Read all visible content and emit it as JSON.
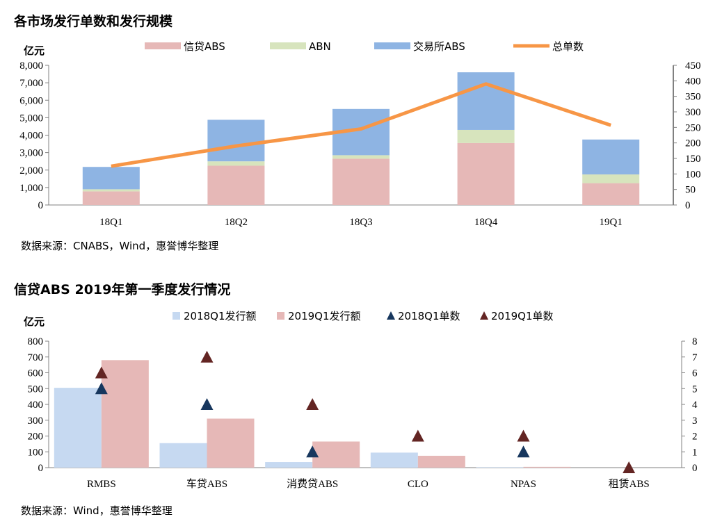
{
  "chart_data": [
    {
      "type": "bar",
      "stacked": true,
      "title": "各市场发行单数和发行规模",
      "ylabel": "亿元",
      "categories": [
        "18Q1",
        "18Q2",
        "18Q3",
        "18Q4",
        "19Q1"
      ],
      "ylim": [
        0,
        8000
      ],
      "yticks": [
        "0",
        "1,000",
        "2,000",
        "3,000",
        "4,000",
        "5,000",
        "6,000",
        "7,000",
        "8,000"
      ],
      "y2lim": [
        0,
        450
      ],
      "y2ticks": [
        "0",
        "50",
        "100",
        "150",
        "200",
        "250",
        "300",
        "350",
        "400",
        "450"
      ],
      "series": [
        {
          "name": "信贷ABS",
          "type": "bar",
          "axis": "left",
          "color": "#e6b8b7",
          "values": [
            780,
            2250,
            2650,
            3550,
            1250
          ]
        },
        {
          "name": "ABN",
          "type": "bar",
          "axis": "left",
          "color": "#d7e4bd",
          "values": [
            120,
            250,
            200,
            750,
            500
          ]
        },
        {
          "name": "交易所ABS",
          "type": "bar",
          "axis": "left",
          "color": "#8eb4e3",
          "values": [
            1280,
            2380,
            2650,
            3300,
            2000
          ]
        },
        {
          "name": "总单数",
          "type": "line",
          "axis": "right",
          "color": "#f79646",
          "values": [
            125,
            190,
            245,
            390,
            257
          ]
        }
      ],
      "grid": false,
      "legend": "top",
      "source": "数据来源：CNABS，Wind，惠誉博华整理"
    },
    {
      "type": "bar",
      "title": "信贷ABS 2019年第一季度发行情况",
      "ylabel": "亿元",
      "categories": [
        "RMBS",
        "车贷ABS",
        "消费贷ABS",
        "CLO",
        "NPAS",
        "租赁ABS"
      ],
      "ylim": [
        0,
        800
      ],
      "yticks": [
        "0",
        "100",
        "200",
        "300",
        "400",
        "500",
        "600",
        "700",
        "800"
      ],
      "y2lim": [
        0,
        8
      ],
      "y2ticks": [
        "0",
        "1",
        "2",
        "3",
        "4",
        "5",
        "6",
        "7",
        "8"
      ],
      "series": [
        {
          "name": "2018Q1发行额",
          "type": "bar",
          "axis": "left",
          "color": "#c6d9f1",
          "values": [
            505,
            155,
            35,
            95,
            3,
            0
          ]
        },
        {
          "name": "2019Q1发行额",
          "type": "bar",
          "axis": "left",
          "color": "#e6b8b7",
          "values": [
            680,
            310,
            165,
            75,
            5,
            0
          ]
        },
        {
          "name": "2018Q1单数",
          "type": "scatter",
          "axis": "right",
          "color": "#17375e",
          "values": [
            5,
            4,
            1,
            null,
            1,
            null
          ]
        },
        {
          "name": "2019Q1单数",
          "type": "scatter",
          "axis": "right",
          "color": "#632523",
          "values": [
            6,
            7,
            4,
            2,
            2,
            0
          ]
        }
      ],
      "grid": false,
      "legend": "top",
      "source": "数据来源：Wind，惠誉博华整理"
    }
  ]
}
